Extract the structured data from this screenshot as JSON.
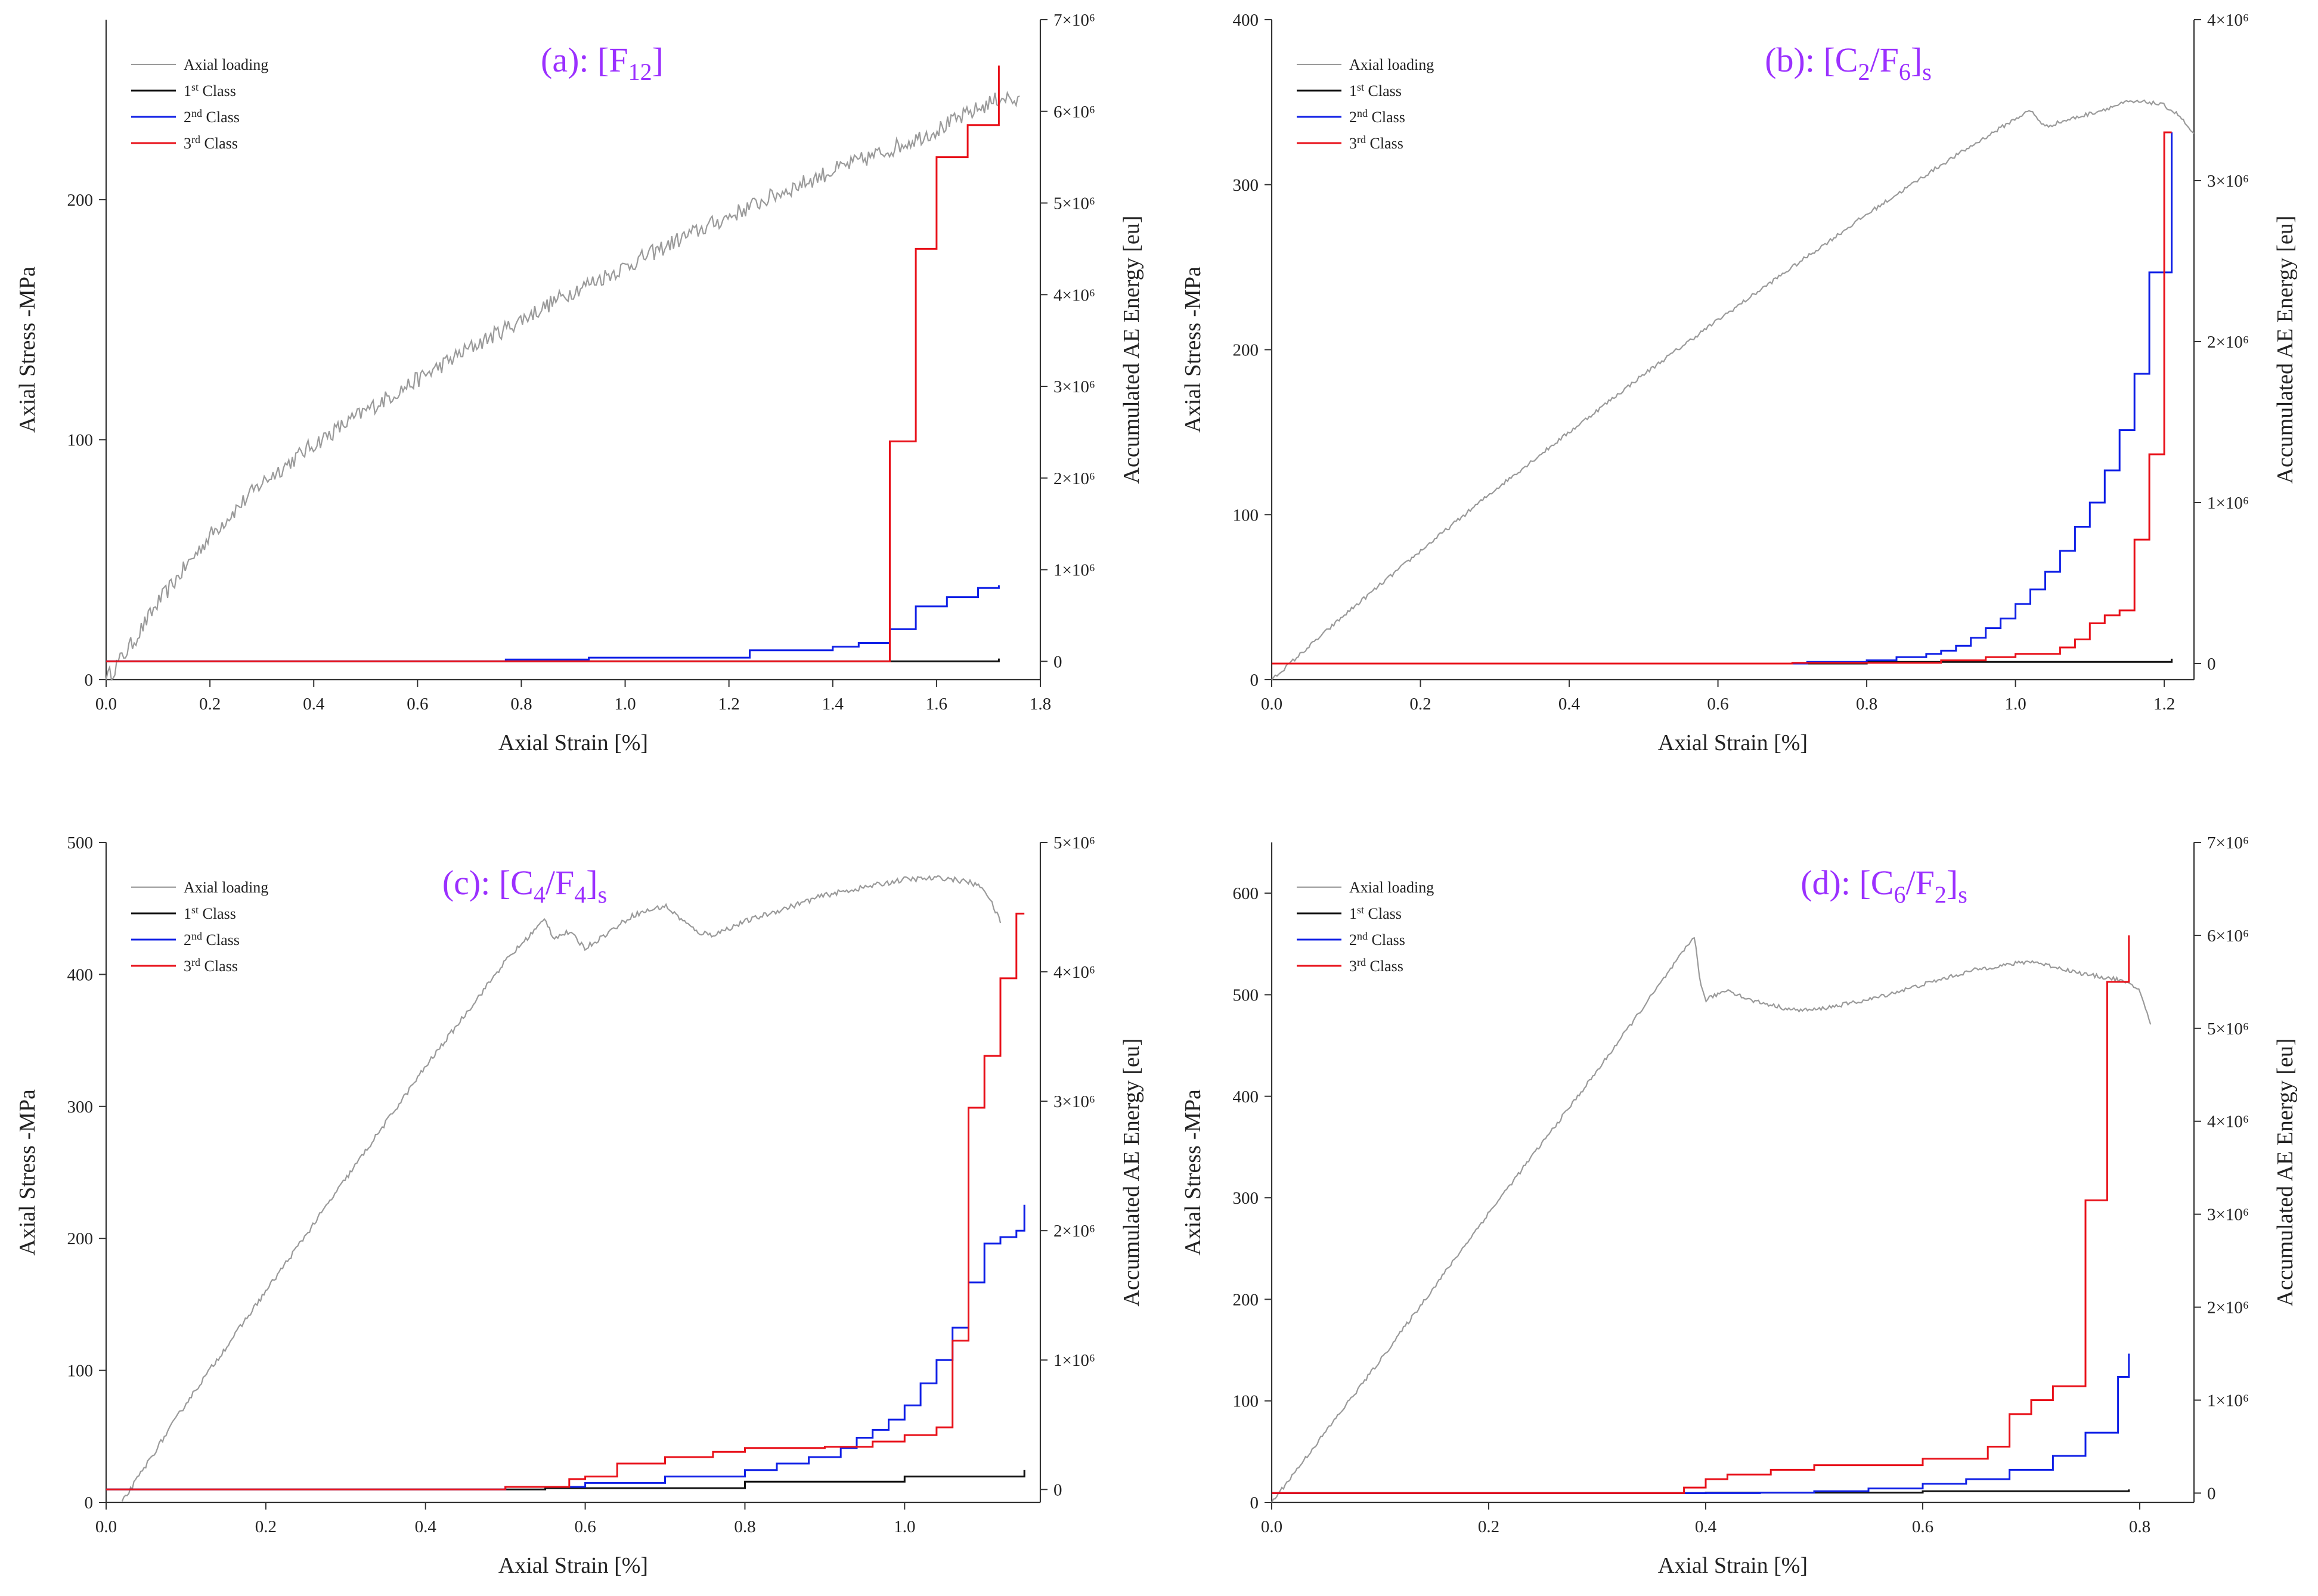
{
  "figure": {
    "colors": {
      "axial_loading": "#9a9a9a",
      "class1": "#111111",
      "class2": "#1020e6",
      "class3": "#e8111a",
      "title": "#9b30ff"
    }
  },
  "chart_data": [
    {
      "type": "line",
      "panel": "a",
      "title": {
        "prefix": "(a): [F",
        "sub": "12",
        "suffix": "]",
        "tail": ""
      },
      "xlabel": "Axial Strain [%]",
      "ylabel": "Axial Stress -MPa",
      "y2label": "Accumulated AE Energy [eu]",
      "xlim": [
        0,
        1.8
      ],
      "ylim": [
        0,
        275
      ],
      "y2lim": [
        -200000,
        7000000
      ],
      "x_ticks": [
        "0.0",
        "0.2",
        "0.4",
        "0.6",
        "0.8",
        "1.0",
        "1.2",
        "1.4",
        "1.6",
        "1.8"
      ],
      "x_tick_values": [
        0,
        0.2,
        0.4,
        0.6,
        0.8,
        1.0,
        1.2,
        1.4,
        1.6,
        1.8
      ],
      "y_ticks": [
        "0",
        "100",
        "200"
      ],
      "y_tick_values": [
        0,
        100,
        200
      ],
      "y2_ticks": [
        "0",
        "1×10⁶",
        "2×10⁶",
        "3×10⁶",
        "4×10⁶",
        "5×10⁶",
        "6×10⁶",
        "7×10⁶"
      ],
      "y2_tick_values": [
        0,
        1000000,
        2000000,
        3000000,
        4000000,
        5000000,
        6000000,
        7000000
      ],
      "legend": [
        "Axial loading",
        "1st Class",
        "2nd Class",
        "3rd Class"
      ],
      "stress": {
        "x": [
          0,
          0.05,
          0.1,
          0.2,
          0.3,
          0.4,
          0.5,
          0.6,
          0.7,
          0.8,
          0.9,
          1.0,
          1.1,
          1.2,
          1.3,
          1.4,
          1.5,
          1.6,
          1.7,
          1.73,
          1.76
        ],
        "y": [
          0,
          15,
          32,
          60,
          82,
          98,
          112,
          125,
          138,
          150,
          162,
          172,
          183,
          193,
          203,
          212,
          220,
          229,
          240,
          243,
          240
        ],
        "noise": 3.5
      },
      "energy": {
        "class1": {
          "x": [
            0,
            1.72
          ],
          "y": [
            0,
            30000
          ]
        },
        "class2": {
          "x": [
            0,
            0.77,
            0.93,
            1.24,
            1.4,
            1.45,
            1.51,
            1.56,
            1.62,
            1.68,
            1.72
          ],
          "y": [
            0,
            20000,
            40000,
            120000,
            160000,
            200000,
            350000,
            600000,
            700000,
            800000,
            830000
          ]
        },
        "class3": {
          "x": [
            0,
            1.51,
            1.56,
            1.6,
            1.66,
            1.72
          ],
          "y": [
            0,
            2400000,
            4500000,
            5500000,
            5850000,
            6500000
          ]
        }
      }
    },
    {
      "type": "line",
      "panel": "b",
      "title": {
        "prefix": "(b): [C",
        "sub": "2",
        "suffix": "/F",
        "sub2": "6",
        "tail": "]",
        "sub3": "s"
      },
      "xlabel": "Axial Strain [%]",
      "ylabel": "Axial Stress -MPa",
      "y2label": "Accumulated AE Energy [eu]",
      "xlim": [
        0,
        1.24
      ],
      "ylim": [
        0,
        400
      ],
      "y2lim": [
        -100000,
        4000000
      ],
      "x_ticks": [
        "0.0",
        "0.2",
        "0.4",
        "0.6",
        "0.8",
        "1.0",
        "1.2"
      ],
      "x_tick_values": [
        0,
        0.2,
        0.4,
        0.6,
        0.8,
        1.0,
        1.2
      ],
      "y_ticks": [
        "0",
        "100",
        "200",
        "300",
        "400"
      ],
      "y_tick_values": [
        0,
        100,
        200,
        300,
        400
      ],
      "y2_ticks": [
        "0",
        "1×10⁶",
        "2×10⁶",
        "3×10⁶",
        "4×10⁶"
      ],
      "y2_tick_values": [
        0,
        1000000,
        2000000,
        3000000,
        4000000
      ],
      "legend": [
        "Axial loading",
        "1st Class",
        "2nd Class",
        "3rd Class"
      ],
      "stress": {
        "x": [
          0,
          0.1,
          0.2,
          0.3,
          0.4,
          0.5,
          0.6,
          0.7,
          0.8,
          0.9,
          0.95,
          1.0,
          1.02,
          1.04,
          1.06,
          1.1,
          1.15,
          1.18,
          1.2,
          1.22,
          1.24
        ],
        "y": [
          0,
          40,
          78,
          115,
          150,
          185,
          218,
          250,
          282,
          312,
          326,
          340,
          345,
          335,
          338,
          343,
          350,
          350,
          348,
          342,
          330
        ],
        "noise": 1.2
      },
      "energy": {
        "class1": {
          "x": [
            0,
            0.8,
            1.21
          ],
          "y": [
            0,
            10000,
            30000
          ]
        },
        "class2": {
          "x": [
            0,
            0.72,
            0.8,
            0.84,
            0.88,
            0.9,
            0.92,
            0.94,
            0.96,
            0.98,
            1.0,
            1.02,
            1.04,
            1.06,
            1.08,
            1.1,
            1.12,
            1.14,
            1.16,
            1.18,
            1.21
          ],
          "y": [
            0,
            10000,
            20000,
            40000,
            60000,
            80000,
            110000,
            160000,
            220000,
            280000,
            370000,
            460000,
            570000,
            700000,
            850000,
            1000000,
            1200000,
            1450000,
            1800000,
            2430000,
            3300000
          ]
        },
        "class3": {
          "x": [
            0,
            0.7,
            0.9,
            0.96,
            1.0,
            1.06,
            1.08,
            1.1,
            1.12,
            1.14,
            1.16,
            1.18,
            1.2,
            1.21
          ],
          "y": [
            0,
            5000,
            20000,
            40000,
            60000,
            100000,
            150000,
            250000,
            300000,
            330000,
            770000,
            1300000,
            3300000,
            3300000
          ]
        }
      }
    },
    {
      "type": "line",
      "panel": "c",
      "title": {
        "prefix": "(c): [C",
        "sub": "4",
        "suffix": "/F",
        "sub2": "4",
        "tail": "]",
        "sub3": "s"
      },
      "xlabel": "Axial Strain [%]",
      "ylabel": "Axial Stress -MPa",
      "y2label": "Accumulated AE Energy [eu]",
      "xlim": [
        0,
        1.17
      ],
      "ylim": [
        0,
        500
      ],
      "y2lim": [
        -100000,
        5000000
      ],
      "x_ticks": [
        "0.0",
        "0.2",
        "0.4",
        "0.6",
        "0.8",
        "1.0"
      ],
      "x_tick_values": [
        0,
        0.2,
        0.4,
        0.6,
        0.8,
        1.0
      ],
      "y_ticks": [
        "0",
        "100",
        "200",
        "300",
        "400",
        "500"
      ],
      "y_tick_values": [
        0,
        100,
        200,
        300,
        400,
        500
      ],
      "y2_ticks": [
        "0",
        "1×10⁶",
        "2×10⁶",
        "3×10⁶",
        "4×10⁶",
        "5×10⁶"
      ],
      "y2_tick_values": [
        0,
        1000000,
        2000000,
        3000000,
        4000000,
        5000000
      ],
      "legend": [
        "Axial loading",
        "1st Class",
        "2nd Class",
        "3rd Class"
      ],
      "stress": {
        "x": [
          0.02,
          0.1,
          0.2,
          0.3,
          0.4,
          0.5,
          0.55,
          0.56,
          0.58,
          0.6,
          0.62,
          0.66,
          0.7,
          0.74,
          0.76,
          0.8,
          0.9,
          1.0,
          1.05,
          1.08,
          1.1,
          1.12
        ],
        "y": [
          0,
          75,
          160,
          245,
          330,
          410,
          442,
          428,
          432,
          420,
          428,
          445,
          452,
          432,
          430,
          440,
          460,
          472,
          473,
          470,
          465,
          440
        ],
        "noise": 2
      },
      "energy": {
        "class1": {
          "x": [
            0,
            0.55,
            0.8,
            1.0,
            1.15
          ],
          "y": [
            0,
            10000,
            60000,
            100000,
            150000
          ]
        },
        "class2": {
          "x": [
            0,
            0.5,
            0.6,
            0.7,
            0.8,
            0.84,
            0.88,
            0.92,
            0.94,
            0.96,
            0.98,
            1.0,
            1.02,
            1.04,
            1.06,
            1.08,
            1.1,
            1.12,
            1.14,
            1.15
          ],
          "y": [
            0,
            20000,
            50000,
            100000,
            150000,
            200000,
            250000,
            320000,
            400000,
            460000,
            540000,
            650000,
            820000,
            1000000,
            1250000,
            1600000,
            1900000,
            1950000,
            2000000,
            2200000
          ]
        },
        "class3": {
          "x": [
            0,
            0.5,
            0.58,
            0.6,
            0.64,
            0.7,
            0.76,
            0.8,
            0.9,
            0.96,
            1.0,
            1.04,
            1.06,
            1.08,
            1.1,
            1.12,
            1.14,
            1.15
          ],
          "y": [
            0,
            20000,
            80000,
            100000,
            200000,
            250000,
            290000,
            320000,
            330000,
            370000,
            420000,
            480000,
            1150000,
            2950000,
            3350000,
            3950000,
            4450000,
            4450000
          ]
        }
      }
    },
    {
      "type": "line",
      "panel": "d",
      "title": {
        "prefix": "(d): [C",
        "sub": "6",
        "suffix": "/F",
        "sub2": "2",
        "tail": "]",
        "sub3": "s"
      },
      "xlabel": "Axial Strain [%]",
      "ylabel": "Axial Stress -MPa",
      "y2label": "Accumulated AE Energy [eu]",
      "xlim": [
        0,
        0.85
      ],
      "ylim": [
        0,
        650
      ],
      "y2lim": [
        -100000,
        7000000
      ],
      "x_ticks": [
        "0.0",
        "0.2",
        "0.4",
        "0.6",
        "0.8"
      ],
      "x_tick_values": [
        0,
        0.2,
        0.4,
        0.6,
        0.8
      ],
      "y_ticks": [
        "0",
        "100",
        "200",
        "300",
        "400",
        "500",
        "600"
      ],
      "y_tick_values": [
        0,
        100,
        200,
        300,
        400,
        500,
        600
      ],
      "y2_ticks": [
        "0",
        "1×10⁶",
        "2×10⁶",
        "3×10⁶",
        "4×10⁶",
        "5×10⁶",
        "6×10⁶",
        "7×10⁶"
      ],
      "y2_tick_values": [
        0,
        1000000,
        2000000,
        3000000,
        4000000,
        5000000,
        6000000,
        7000000
      ],
      "legend": [
        "Axial loading",
        "1st Class",
        "2nd Class",
        "3rd Class"
      ],
      "stress": {
        "x": [
          0,
          0.1,
          0.2,
          0.3,
          0.39,
          0.395,
          0.4,
          0.42,
          0.44,
          0.46,
          0.48,
          0.5,
          0.55,
          0.6,
          0.65,
          0.7,
          0.75,
          0.78,
          0.8,
          0.81
        ],
        "y": [
          0,
          140,
          285,
          425,
          558,
          510,
          495,
          505,
          495,
          490,
          485,
          485,
          495,
          510,
          525,
          533,
          520,
          515,
          505,
          470
        ],
        "noise": 2
      },
      "energy": {
        "class1": {
          "x": [
            0,
            0.4,
            0.6,
            0.79
          ],
          "y": [
            0,
            5000,
            20000,
            40000
          ]
        },
        "class2": {
          "x": [
            0,
            0.45,
            0.5,
            0.55,
            0.6,
            0.64,
            0.68,
            0.72,
            0.75,
            0.78,
            0.79
          ],
          "y": [
            0,
            5000,
            20000,
            50000,
            100000,
            150000,
            250000,
            400000,
            650000,
            1250000,
            1500000
          ]
        },
        "class3": {
          "x": [
            0,
            0.38,
            0.4,
            0.42,
            0.46,
            0.5,
            0.6,
            0.66,
            0.68,
            0.7,
            0.72,
            0.75,
            0.77,
            0.79
          ],
          "y": [
            0,
            60000,
            150000,
            200000,
            250000,
            300000,
            370000,
            500000,
            850000,
            1000000,
            1150000,
            3150000,
            5500000,
            6000000
          ]
        }
      }
    }
  ]
}
